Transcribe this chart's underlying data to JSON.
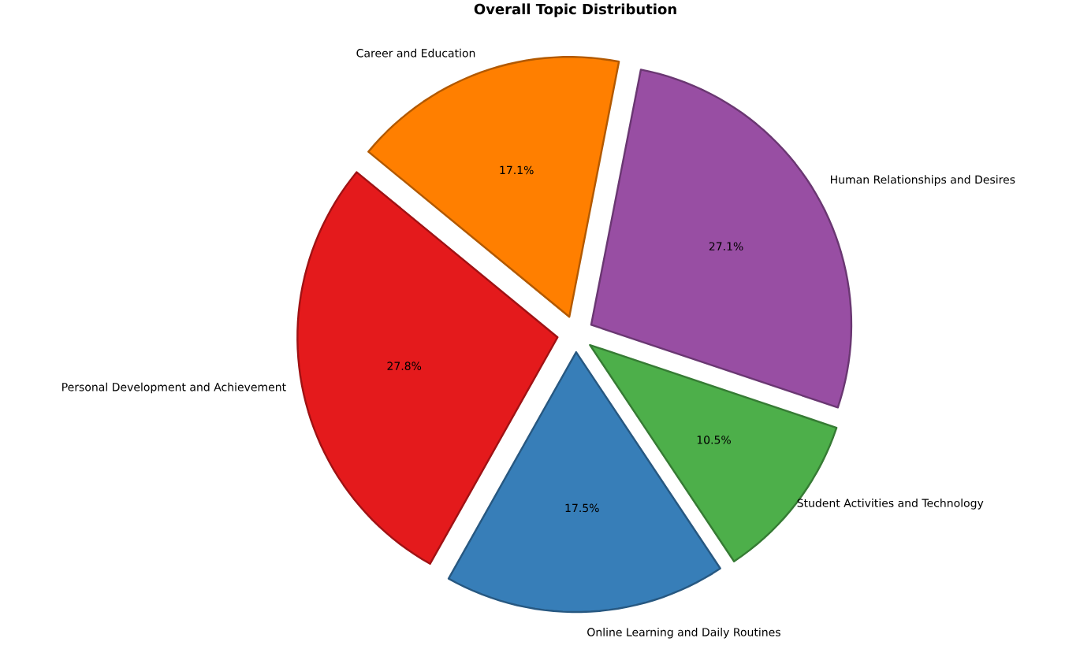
{
  "chart_data": {
    "type": "pie",
    "title": "Overall Topic Distribution",
    "categories": [
      "Career and Education",
      "Personal Development and Achievement",
      "Online Learning and Daily Routines",
      "Student Activities and Technology",
      "Human Relationships and Desires"
    ],
    "values": [
      17.1,
      27.8,
      17.5,
      10.5,
      27.1
    ],
    "colors": [
      "#ff7f00",
      "#e41a1c",
      "#377eb8",
      "#4daf4a",
      "#984ea3"
    ],
    "value_labels": [
      "17.1%",
      "27.8%",
      "17.5%",
      "10.5%",
      "27.1%"
    ]
  }
}
